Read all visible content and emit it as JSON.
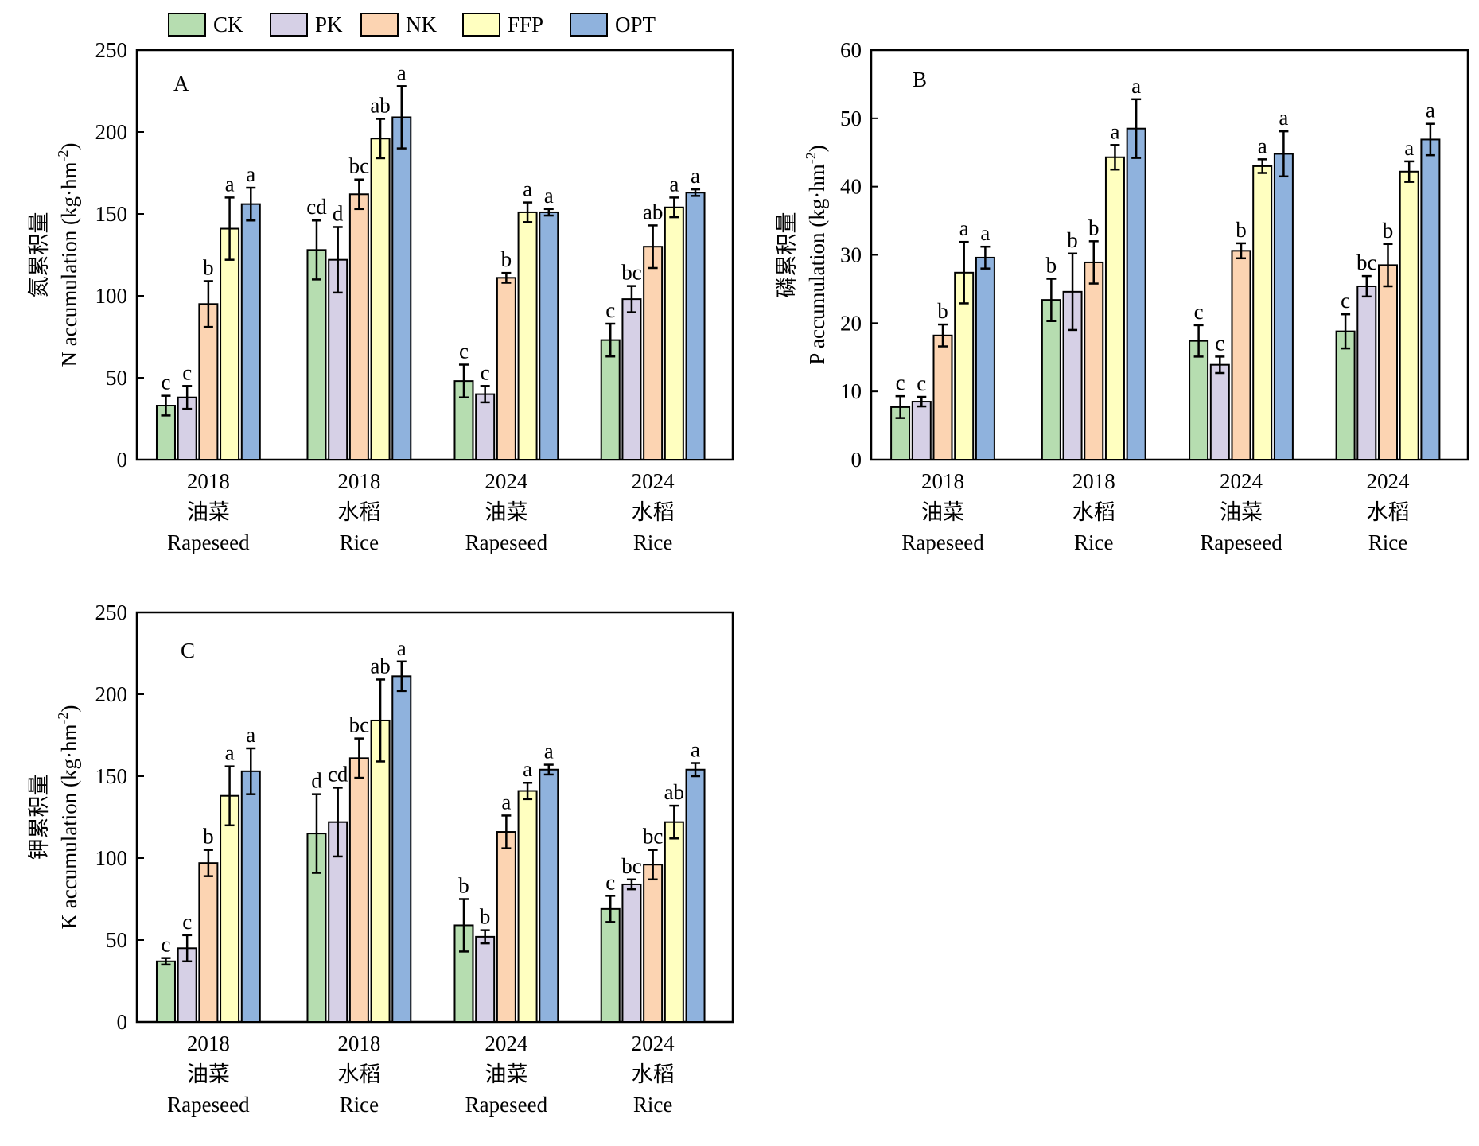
{
  "legend": {
    "entries": [
      {
        "name": "CK",
        "color": "#b6ddb0"
      },
      {
        "name": "PK",
        "color": "#d6d0e6"
      },
      {
        "name": "NK",
        "color": "#fcd4b2"
      },
      {
        "name": "FFP",
        "color": "#ffffc0"
      },
      {
        "name": "OPT",
        "color": "#8fb2dd"
      }
    ],
    "placement": "top, above panels"
  },
  "categories": [
    {
      "year": "2018",
      "crop_cn": "油菜",
      "crop_en": "Rapeseed"
    },
    {
      "year": "2018",
      "crop_cn": "水稻",
      "crop_en": "Rice"
    },
    {
      "year": "2024",
      "crop_cn": "油菜",
      "crop_en": "Rapeseed"
    },
    {
      "year": "2024",
      "crop_cn": "水稻",
      "crop_en": "Rice"
    }
  ],
  "chart_data": [
    {
      "type": "bar",
      "panel_label": "A",
      "ylabel_cn": "氮累积量",
      "ylabel_en": "N accumulation (kg·hm",
      "ylabel_sup": "-2",
      "ylabel_close": ")",
      "ylim": [
        0,
        250
      ],
      "yticks": [
        0,
        50,
        100,
        150,
        200,
        250
      ],
      "grid": false,
      "series": [
        {
          "name": "CK",
          "values": [
            33,
            128,
            48,
            73
          ],
          "errors": [
            6,
            18,
            10,
            10
          ],
          "letters": [
            "c",
            "cd",
            "c",
            "c"
          ]
        },
        {
          "name": "PK",
          "values": [
            38,
            122,
            40,
            98
          ],
          "errors": [
            7,
            20,
            5,
            8
          ],
          "letters": [
            "c",
            "d",
            "c",
            "bc"
          ]
        },
        {
          "name": "NK",
          "values": [
            95,
            162,
            111,
            130
          ],
          "errors": [
            14,
            9,
            3,
            13
          ],
          "letters": [
            "b",
            "bc",
            "b",
            "ab"
          ]
        },
        {
          "name": "FFP",
          "values": [
            141,
            196,
            151,
            154
          ],
          "errors": [
            19,
            12,
            6,
            6
          ],
          "letters": [
            "a",
            "ab",
            "a",
            "a"
          ]
        },
        {
          "name": "OPT",
          "values": [
            156,
            209,
            151,
            163
          ],
          "errors": [
            10,
            19,
            2,
            2
          ],
          "letters": [
            "a",
            "a",
            "a",
            "a"
          ]
        }
      ]
    },
    {
      "type": "bar",
      "panel_label": "B",
      "ylabel_cn": "磷累积量",
      "ylabel_en": "P accumulation (kg·hm",
      "ylabel_sup": "-2",
      "ylabel_close": ")",
      "ylim": [
        0,
        60
      ],
      "yticks": [
        0,
        10,
        20,
        30,
        40,
        50,
        60
      ],
      "grid": false,
      "series": [
        {
          "name": "CK",
          "values": [
            7.7,
            23.4,
            17.4,
            18.8
          ],
          "errors": [
            1.6,
            3.1,
            2.3,
            2.5
          ],
          "letters": [
            "c",
            "b",
            "c",
            "c"
          ]
        },
        {
          "name": "PK",
          "values": [
            8.5,
            24.6,
            13.9,
            25.4
          ],
          "errors": [
            0.7,
            5.6,
            1.2,
            1.5
          ],
          "letters": [
            "c",
            "b",
            "c",
            "bc"
          ]
        },
        {
          "name": "NK",
          "values": [
            18.2,
            28.9,
            30.6,
            28.5
          ],
          "errors": [
            1.6,
            3.1,
            1.1,
            3.1
          ],
          "letters": [
            "b",
            "b",
            "b",
            "b"
          ]
        },
        {
          "name": "FFP",
          "values": [
            27.4,
            44.3,
            43.0,
            42.2
          ],
          "errors": [
            4.5,
            1.8,
            1.0,
            1.5
          ],
          "letters": [
            "a",
            "a",
            "a",
            "a"
          ]
        },
        {
          "name": "OPT",
          "values": [
            29.6,
            48.5,
            44.8,
            46.9
          ],
          "errors": [
            1.6,
            4.3,
            3.3,
            2.3
          ],
          "letters": [
            "a",
            "a",
            "a",
            "a"
          ]
        }
      ]
    },
    {
      "type": "bar",
      "panel_label": "C",
      "ylabel_cn": "钾累积量",
      "ylabel_en": "K accumulation (kg·hm",
      "ylabel_sup": "-2",
      "ylabel_close": ")",
      "ylim": [
        0,
        250
      ],
      "yticks": [
        0,
        50,
        100,
        150,
        200,
        250
      ],
      "grid": false,
      "series": [
        {
          "name": "CK",
          "values": [
            37,
            115,
            59,
            69
          ],
          "errors": [
            2,
            24,
            16,
            8
          ],
          "letters": [
            "c",
            "d",
            "b",
            "c"
          ]
        },
        {
          "name": "PK",
          "values": [
            45,
            122,
            52,
            84
          ],
          "errors": [
            8,
            21,
            4,
            3
          ],
          "letters": [
            "c",
            "cd",
            "b",
            "bc"
          ]
        },
        {
          "name": "NK",
          "values": [
            97,
            161,
            116,
            96
          ],
          "errors": [
            8,
            12,
            10,
            9
          ],
          "letters": [
            "b",
            "bc",
            "a",
            "bc"
          ]
        },
        {
          "name": "FFP",
          "values": [
            138,
            184,
            141,
            122
          ],
          "errors": [
            18,
            25,
            5,
            10
          ],
          "letters": [
            "a",
            "ab",
            "a",
            "ab"
          ]
        },
        {
          "name": "OPT",
          "values": [
            153,
            211,
            154,
            154
          ],
          "errors": [
            14,
            9,
            3,
            4
          ],
          "letters": [
            "a",
            "a",
            "a",
            "a"
          ]
        }
      ]
    }
  ]
}
